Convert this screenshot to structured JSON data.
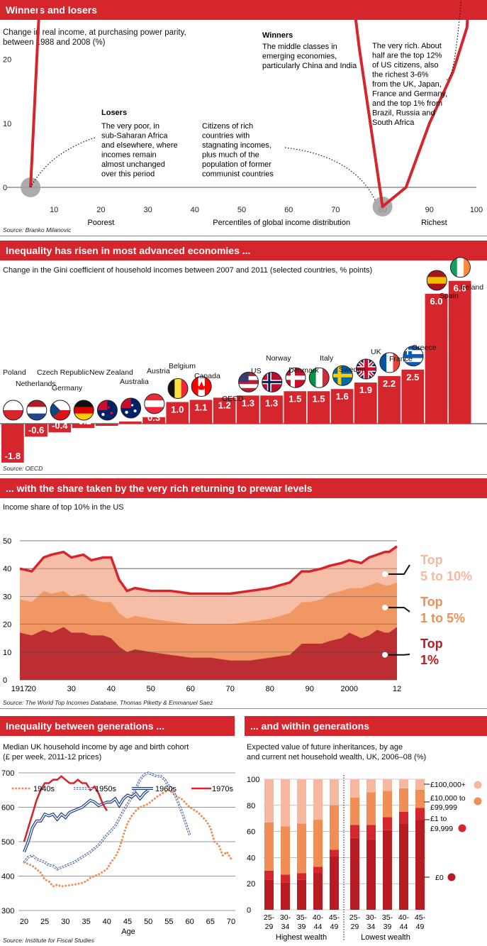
{
  "panel1": {
    "header": "Winners and losers",
    "subtitle_lines": [
      "Change in real income, at purchasing power parity,",
      "between 1988 and 2008 (%)"
    ],
    "source": "Source: Branko Milanovic",
    "xaxis_labels": {
      "poorest": "Poorest",
      "middle": "Percentiles of global income distribution",
      "richest": "Richest"
    },
    "annotations": {
      "winners_title": "Winners",
      "winners_lines": [
        "The middle classes in",
        "emerging economies,",
        "particularly China and India"
      ],
      "losers_title": "Losers",
      "losers_lines": [
        "The very poor, in",
        "sub-Saharan Africa",
        "and elsewhere, where",
        "incomes remain",
        "almost unchanged",
        "over this period"
      ],
      "rich_countries_lines": [
        "Citizens of rich",
        "countries with",
        "stagnating incomes,",
        "plus much of the",
        "population of former",
        "communist countries"
      ],
      "very_rich_lines": [
        "The very rich. About",
        "half are the top 12%",
        "of US citizens, also",
        "the richest 3-6%",
        "from the UK, Japan,",
        "France and Germany,",
        "and the top 1% from",
        "Brazil, Russia and",
        "South Africa"
      ]
    }
  },
  "panel2": {
    "header": "Inequality has risen in most advanced economies ...",
    "subtitle": "Change in the Gini coefficient of household incomes between 2007 and 2011 (selected countries, % points)",
    "source": "Source: OECD"
  },
  "panel3": {
    "header": "... with the share taken by the very rich returning to prewar levels",
    "subtitle": "Income share of top 10% in the US",
    "source": "Source: The World Top Incomes Database, Thomas Piketty & Emmanuel Saez"
  },
  "panel4": {
    "header": "Inequality between generations ...",
    "subtitle_lines": [
      "Median UK household income by age and birth cohort",
      "(£ per week, 2011-12 prices)"
    ],
    "source": "Source: Institute for Fiscal Studies"
  },
  "panel5": {
    "header": "... and within generations",
    "subtitle_lines": [
      "Expected value of future inheritances, by age",
      "and current net household wealth, UK, 2006–08 (%)"
    ],
    "group_labels": [
      "Highest wealth",
      "Lowest wealth"
    ]
  },
  "chart_data": [
    {
      "type": "line",
      "xlim": [
        0,
        100
      ],
      "ylim": [
        -10,
        85
      ],
      "xticks": [
        "10",
        "20",
        "30",
        "40",
        "50",
        "60",
        "70",
        "80",
        "90",
        "100"
      ],
      "yticks": [
        "80",
        "70",
        "60",
        "50",
        "40",
        "30",
        "20",
        "10",
        "0",
        "-10"
      ],
      "x": [
        5,
        7,
        10,
        15,
        20,
        25,
        30,
        35,
        40,
        45,
        50,
        55,
        60,
        65,
        70,
        75,
        80,
        85,
        90,
        95,
        98,
        99,
        100
      ],
      "values": [
        0,
        30,
        48,
        55,
        62,
        66,
        67,
        70,
        73,
        70,
        80,
        64,
        72,
        68,
        52,
        22,
        -3,
        0,
        10,
        18,
        25,
        38,
        60
      ]
    },
    {
      "type": "bar",
      "categories": [
        "Poland",
        "Netherlands",
        "Czech Republic",
        "Germany",
        "New Zealand",
        "Australia",
        "Austria",
        "Belgium",
        "Canada",
        "OECD",
        "US",
        "Norway",
        "Denmark",
        "Italy",
        "Sweden",
        "UK",
        "France",
        "Greece",
        "Spain",
        "Ireland"
      ],
      "values": [
        -1.8,
        -0.6,
        -0.4,
        -0.2,
        -0.1,
        0.1,
        0.3,
        1.0,
        1.1,
        1.2,
        1.3,
        1.3,
        1.5,
        1.5,
        1.6,
        1.9,
        2.2,
        2.5,
        6.0,
        6.6
      ],
      "labels": [
        "-1.8",
        "-0.6",
        "-0.4",
        "-0.2",
        "-0.1",
        "0.1",
        "0.3",
        "1.0",
        "1.1",
        "1.2",
        "1.3",
        "1.3",
        "1.5",
        "1.5",
        "1.6",
        "1.9",
        "2.2",
        "2.5",
        "6.0",
        "6.6"
      ]
    },
    {
      "type": "area",
      "ylim": [
        0,
        50
      ],
      "yticks": [
        "50",
        "40",
        "30",
        "20",
        "10",
        "0"
      ],
      "xlim": [
        1917,
        2012
      ],
      "xticks": [
        {
          "v": 1917,
          "t": "1917"
        },
        {
          "v": 1920,
          "t": "20"
        },
        {
          "v": 1930,
          "t": "30"
        },
        {
          "v": 1940,
          "t": "40"
        },
        {
          "v": 1950,
          "t": "50"
        },
        {
          "v": 1960,
          "t": "60"
        },
        {
          "v": 1970,
          "t": "70"
        },
        {
          "v": 1980,
          "t": "80"
        },
        {
          "v": 1990,
          "t": "90"
        },
        {
          "v": 2000,
          "t": "2000"
        },
        {
          "v": 2012,
          "t": "12"
        }
      ],
      "x": [
        1917,
        1920,
        1923,
        1925,
        1928,
        1930,
        1933,
        1935,
        1938,
        1940,
        1942,
        1944,
        1946,
        1950,
        1955,
        1960,
        1965,
        1970,
        1975,
        1980,
        1985,
        1988,
        1990,
        1993,
        1995,
        1998,
        2000,
        2003,
        2005,
        2007,
        2009,
        2010,
        2012
      ],
      "top10": [
        40,
        39,
        44,
        45,
        46,
        44,
        45,
        43,
        44,
        44,
        36,
        32,
        33,
        32,
        32,
        31,
        31,
        31,
        32,
        33,
        35,
        39,
        39,
        40,
        41,
        42,
        43,
        42,
        44,
        45,
        46,
        46,
        48
      ],
      "top5": [
        29,
        28,
        32,
        31,
        32,
        30,
        31,
        29,
        28,
        28,
        24,
        22,
        23,
        22,
        21,
        20,
        20,
        20,
        21,
        22,
        24,
        28,
        28,
        29,
        31,
        32,
        33,
        33,
        34,
        35,
        34,
        34,
        35
      ],
      "top1": [
        17,
        16,
        18,
        17,
        19,
        17,
        17,
        16,
        16,
        15,
        12,
        10,
        11,
        10,
        9,
        8,
        8,
        7,
        7,
        8,
        9,
        13,
        13,
        13,
        14,
        15,
        17,
        15,
        16,
        18,
        17,
        17,
        19
      ],
      "series": [
        {
          "name": "Top 5 to 10%"
        },
        {
          "name": "Top 1 to 5%"
        },
        {
          "name": "Top 1%"
        }
      ]
    },
    {
      "type": "line",
      "xlim": [
        18,
        70
      ],
      "ylim": [
        300,
        710
      ],
      "xticks": [
        "20",
        "25",
        "30",
        "35",
        "40",
        "45",
        "50",
        "55",
        "60",
        "65",
        "70"
      ],
      "yticks": [
        "700",
        "600",
        "500",
        "400",
        "300"
      ],
      "xlabel": "Age",
      "series": [
        {
          "name": "1940s",
          "style": "dotted",
          "x": [
            20,
            22,
            24,
            25,
            26,
            27,
            28,
            29,
            30,
            32,
            34,
            35,
            36,
            38,
            40,
            41,
            42,
            43,
            44,
            45,
            46,
            47,
            48,
            50,
            52,
            54,
            55,
            56,
            57,
            58,
            60,
            62,
            64,
            65,
            66,
            67,
            68,
            69,
            70
          ],
          "values": [
            440,
            430,
            410,
            390,
            385,
            370,
            375,
            370,
            372,
            375,
            380,
            385,
            395,
            405,
            420,
            440,
            455,
            480,
            520,
            555,
            575,
            590,
            600,
            610,
            630,
            645,
            650,
            640,
            630,
            625,
            600,
            585,
            560,
            540,
            500,
            490,
            460,
            470,
            450
          ]
        },
        {
          "name": "1950s",
          "style": "double",
          "x": [
            20,
            21,
            22,
            23,
            24,
            25,
            26,
            27,
            28,
            30,
            32,
            34,
            36,
            38,
            40,
            42,
            44,
            46,
            48,
            49,
            50,
            51,
            52,
            53,
            54,
            55,
            56,
            57,
            58,
            59,
            60
          ],
          "values": [
            440,
            455,
            460,
            450,
            445,
            440,
            432,
            430,
            420,
            430,
            440,
            455,
            470,
            490,
            520,
            545,
            590,
            630,
            680,
            695,
            700,
            695,
            690,
            690,
            680,
            660,
            650,
            620,
            590,
            555,
            520
          ]
        },
        {
          "name": "1960s",
          "style": "outline",
          "x": [
            20,
            21,
            22,
            23,
            24,
            25,
            26,
            27,
            28,
            29,
            30,
            31,
            32,
            33,
            34,
            35,
            36,
            37,
            38,
            39,
            40,
            41,
            42,
            43,
            44,
            45,
            46,
            47,
            48,
            49,
            50
          ],
          "values": [
            470,
            500,
            540,
            560,
            560,
            580,
            575,
            580,
            565,
            580,
            570,
            585,
            590,
            595,
            600,
            610,
            620,
            615,
            605,
            610,
            615,
            615,
            625,
            605,
            625,
            635,
            630,
            640,
            625,
            640,
            650
          ]
        },
        {
          "name": "1970s",
          "style": "solid",
          "x": [
            20,
            21,
            22,
            23,
            24,
            25,
            26,
            27,
            28,
            29,
            30,
            31,
            32,
            33,
            34,
            35,
            36,
            37,
            38,
            39,
            40
          ],
          "values": [
            500,
            540,
            580,
            620,
            650,
            670,
            670,
            680,
            680,
            690,
            680,
            670,
            670,
            680,
            670,
            670,
            650,
            660,
            640,
            610,
            590
          ]
        }
      ]
    },
    {
      "type": "bar",
      "stacked": true,
      "ylim": [
        0,
        100
      ],
      "yticks": [
        "100",
        "80",
        "60",
        "40",
        "20",
        "0"
      ],
      "categories": [
        "25-\n29",
        "30-\n34",
        "35-\n39",
        "40-\n44",
        "45-\n49",
        "25-\n29",
        "30-\n34",
        "35-\n39",
        "40-\n44",
        "45-\n49"
      ],
      "category_lines": [
        [
          "25-",
          "29"
        ],
        [
          "30-",
          "34"
        ],
        [
          "35-",
          "39"
        ],
        [
          "40-",
          "44"
        ],
        [
          "45-",
          "49"
        ],
        [
          "25-",
          "29"
        ],
        [
          "30-",
          "34"
        ],
        [
          "35-",
          "39"
        ],
        [
          "40-",
          "44"
        ],
        [
          "45-",
          "49"
        ]
      ],
      "series": [
        {
          "name": "£0",
          "values": [
            23,
            21,
            23,
            28,
            41,
            55,
            54,
            61,
            66,
            69
          ]
        },
        {
          "name": "£1 to £9,999",
          "values": [
            7,
            6,
            5,
            5,
            5,
            10,
            11,
            10,
            9,
            9
          ]
        },
        {
          "name": "£10,000 to £99,999",
          "values": [
            37,
            37,
            38,
            36,
            34,
            21,
            25,
            20,
            18,
            14
          ]
        },
        {
          "name": "£100,000+",
          "values": [
            33,
            36,
            34,
            31,
            20,
            14,
            10,
            9,
            7,
            8
          ]
        }
      ],
      "legend": [
        "£100,000+",
        "£10,000 to £99,999",
        "£1 to £9,999",
        "£0"
      ]
    }
  ],
  "colors": {
    "red": "#d6262d",
    "darkred": "#b71c22",
    "orange": "#f08e56",
    "pink": "#f6b89f",
    "grey": "#9e9e9e"
  }
}
